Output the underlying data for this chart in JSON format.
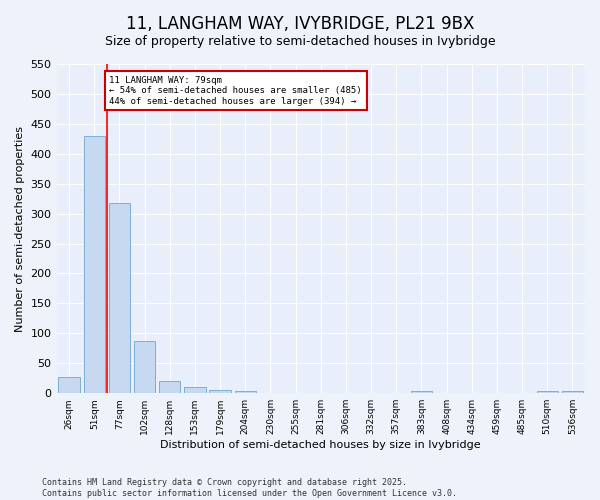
{
  "title": "11, LANGHAM WAY, IVYBRIDGE, PL21 9BX",
  "subtitle": "Size of property relative to semi-detached houses in Ivybridge",
  "xlabel": "Distribution of semi-detached houses by size in Ivybridge",
  "ylabel": "Number of semi-detached properties",
  "categories": [
    "26sqm",
    "51sqm",
    "77sqm",
    "102sqm",
    "128sqm",
    "153sqm",
    "179sqm",
    "204sqm",
    "230sqm",
    "255sqm",
    "281sqm",
    "306sqm",
    "332sqm",
    "357sqm",
    "383sqm",
    "408sqm",
    "434sqm",
    "459sqm",
    "485sqm",
    "510sqm",
    "536sqm"
  ],
  "values": [
    27,
    430,
    318,
    87,
    21,
    10,
    6,
    4,
    0,
    0,
    0,
    0,
    0,
    0,
    4,
    0,
    0,
    0,
    0,
    4,
    4
  ],
  "bar_color": "#c6d9f0",
  "bar_edge_color": "#7bafd4",
  "red_line_index": 2,
  "annotation_text": "11 LANGHAM WAY: 79sqm\n← 54% of semi-detached houses are smaller (485)\n44% of semi-detached houses are larger (394) →",
  "annotation_box_color": "#ffffff",
  "annotation_box_edge": "#cc0000",
  "ylim": [
    0,
    550
  ],
  "yticks": [
    0,
    50,
    100,
    150,
    200,
    250,
    300,
    350,
    400,
    450,
    500,
    550
  ],
  "footer_text": "Contains HM Land Registry data © Crown copyright and database right 2025.\nContains public sector information licensed under the Open Government Licence v3.0.",
  "background_color": "#eef2fb",
  "plot_background": "#e8eefa",
  "title_fontsize": 12,
  "subtitle_fontsize": 9,
  "grid_color": "#ffffff"
}
